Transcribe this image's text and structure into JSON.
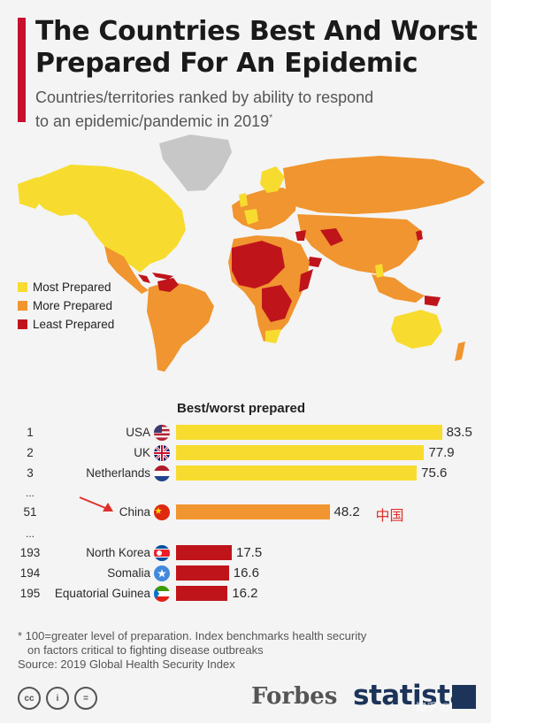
{
  "header": {
    "title": "The Countries Best And Worst Prepared For An Epidemic",
    "subtitle_line1": "Countries/territories ranked by ability to respond",
    "subtitle_line2": "to an epidemic/pandemic in 2019",
    "subtitle_marker": "*"
  },
  "colors": {
    "most": "#f7dc2f",
    "more": "#f0952f",
    "least": "#c0141b",
    "nodata": "#c7c7c7",
    "accent": "#c8102e"
  },
  "legend": [
    {
      "label": "Most Prepared",
      "color": "#f7dc2f"
    },
    {
      "label": "More Prepared",
      "color": "#f0952f"
    },
    {
      "label": "Least Prepared",
      "color": "#c0141b"
    }
  ],
  "chart_data": {
    "type": "bar",
    "orientation": "horizontal",
    "title": "Best/worst prepared",
    "xlim": [
      0,
      100
    ],
    "rows": [
      {
        "rank": "1",
        "country": "USA",
        "value": 83.5,
        "label": "83.5",
        "tier": "most",
        "flag": "us-flag"
      },
      {
        "rank": "2",
        "country": "UK",
        "value": 77.9,
        "label": "77.9",
        "tier": "most",
        "flag": "uk-flag"
      },
      {
        "rank": "3",
        "country": "Netherlands",
        "value": 75.6,
        "label": "75.6",
        "tier": "most",
        "flag": "nl-flag"
      },
      {
        "rank": "51",
        "country": "China",
        "value": 48.2,
        "label": "48.2",
        "tier": "more",
        "flag": "cn-flag",
        "annotation": "中国"
      },
      {
        "rank": "193",
        "country": "North Korea",
        "value": 17.5,
        "label": "17.5",
        "tier": "least",
        "flag": "kp-flag"
      },
      {
        "rank": "194",
        "country": "Somalia",
        "value": 16.6,
        "label": "16.6",
        "tier": "least",
        "flag": "so-flag"
      },
      {
        "rank": "195",
        "country": "Equatorial Guinea",
        "value": 16.2,
        "label": "16.2",
        "tier": "least",
        "flag": "gq-flag"
      }
    ],
    "ellipsis": "..."
  },
  "footnote": {
    "line1": "* 100=greater level of preparation. Index benchmarks health security",
    "line2": "on factors critical to fighting disease outbreaks",
    "source": "Source: 2019 Global Health Security Index"
  },
  "footer": {
    "cc_labels": [
      "cc",
      "i",
      "="
    ],
    "forbes": "Forbes",
    "statista": "statista",
    "watermark": "知乎 @..."
  }
}
